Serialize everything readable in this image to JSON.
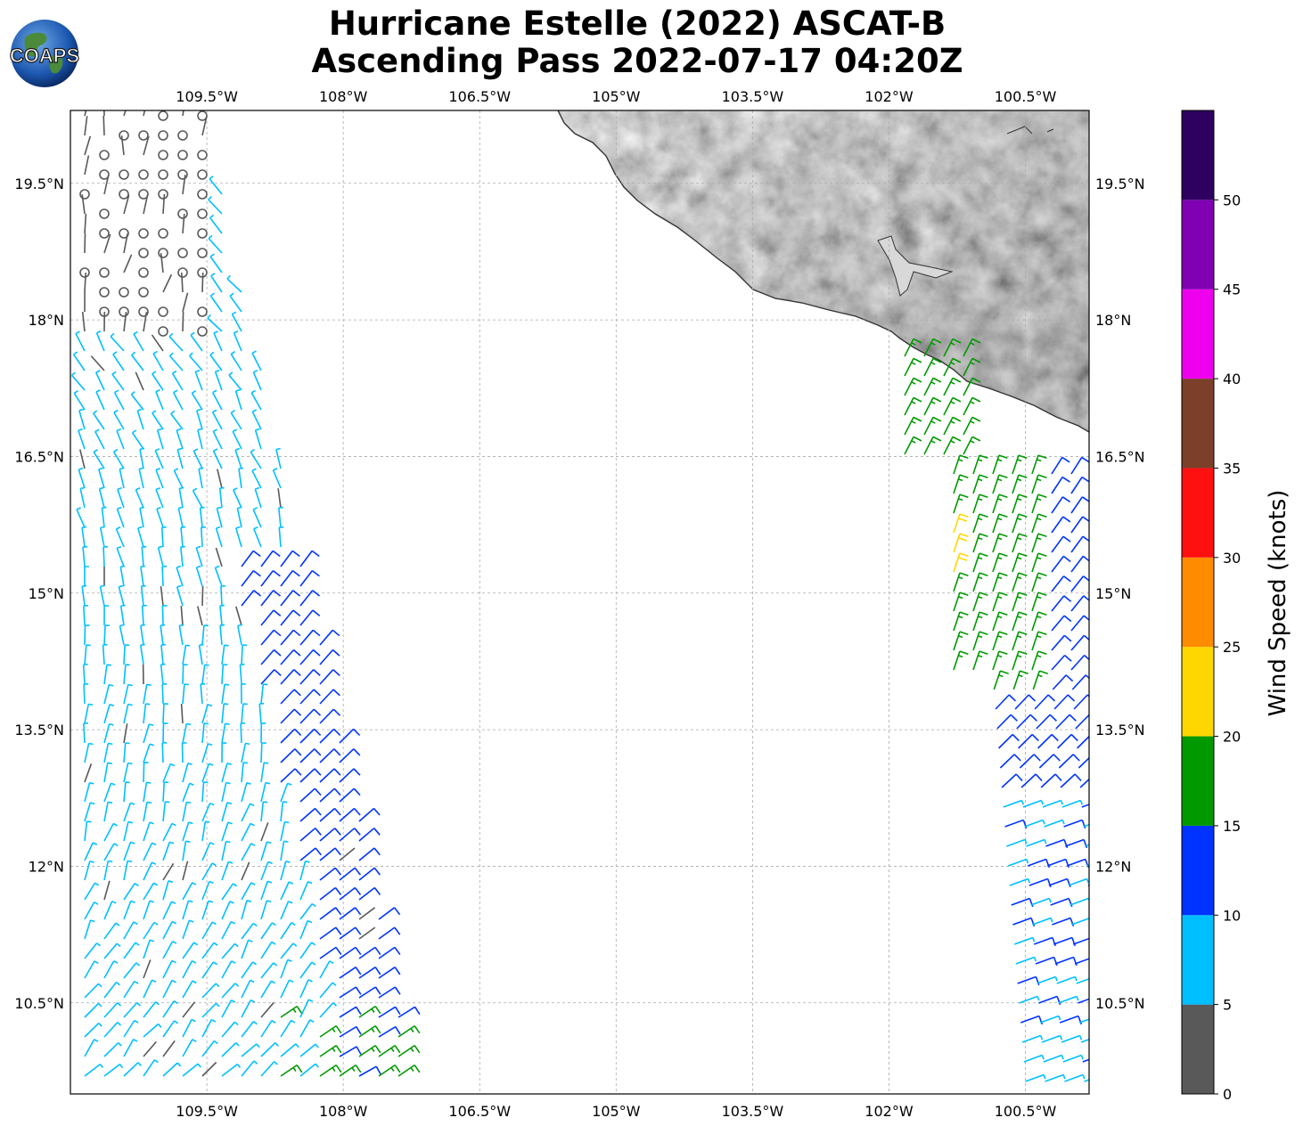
{
  "title": {
    "line1": "Hurricane Estelle (2022) ASCAT-B",
    "line2": "Ascending Pass 2022-07-17 04:20Z"
  },
  "logo": {
    "text": "COAPS",
    "icon": "globe-logo-icon"
  },
  "map": {
    "lon_ticks": [
      "109.5°W",
      "108°W",
      "106.5°W",
      "105°W",
      "103.5°W",
      "102°W",
      "100.5°W"
    ],
    "lon_values": [
      -109.5,
      -108,
      -106.5,
      -105,
      -103.5,
      -102,
      -100.5
    ],
    "lat_ticks": [
      "19.5°N",
      "18°N",
      "16.5°N",
      "15°N",
      "13.5°N",
      "12°N",
      "10.5°N"
    ],
    "lat_values": [
      19.5,
      18,
      16.5,
      15,
      13.5,
      12,
      10.5
    ],
    "lon_range": [
      -111,
      -99.8
    ],
    "lat_range": [
      9.5,
      20.3
    ],
    "grid": true,
    "land_shading": "grayscale terrain",
    "coastline_color": "#333333"
  },
  "colorbar": {
    "label": "Wind Speed (knots)",
    "ticks": [
      "0",
      "5",
      "10",
      "15",
      "20",
      "25",
      "30",
      "35",
      "40",
      "45",
      "50"
    ],
    "bins": [
      {
        "min": 0,
        "max": 5,
        "color": "#595959"
      },
      {
        "min": 5,
        "max": 10,
        "color": "#00bfff"
      },
      {
        "min": 10,
        "max": 15,
        "color": "#0033ff"
      },
      {
        "min": 15,
        "max": 20,
        "color": "#009900"
      },
      {
        "min": 20,
        "max": 25,
        "color": "#ffd700"
      },
      {
        "min": 25,
        "max": 30,
        "color": "#ff8c00"
      },
      {
        "min": 30,
        "max": 35,
        "color": "#ff1010"
      },
      {
        "min": 35,
        "max": 40,
        "color": "#7b3f2a"
      },
      {
        "min": 40,
        "max": 45,
        "color": "#ee00ee"
      },
      {
        "min": 45,
        "max": 50,
        "color": "#8000b3"
      },
      {
        "min": 50,
        "max": 55,
        "color": "#2e005f"
      }
    ]
  }
}
